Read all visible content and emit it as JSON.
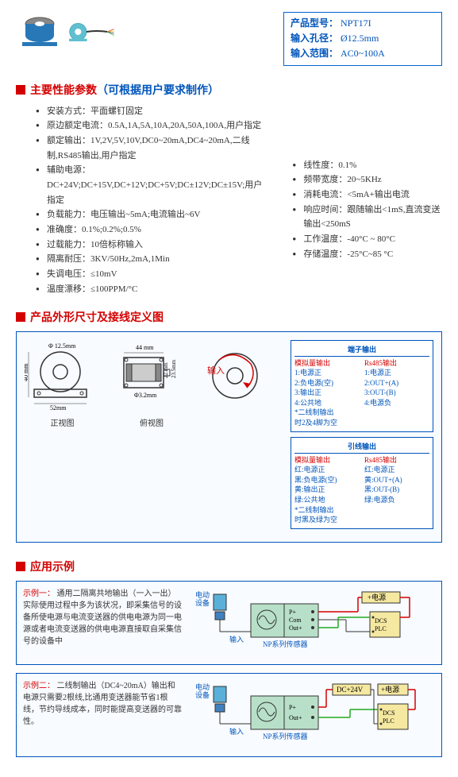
{
  "product": {
    "model_label": "产品型号：",
    "model": "NPT17I",
    "aperture_label": "输入孔径：",
    "aperture": "Ø12.5mm",
    "range_label": "输入范围：",
    "range": "AC0~100A"
  },
  "section1": {
    "title": "主要性能参数",
    "subtitle": "（可根据用户要求制作）",
    "left_specs": [
      "安装方式：平面螺钉固定",
      "原边额定电流：0.5A,1A,5A,10A,20A,50A,100A,用户指定",
      "额定输出：1V,2V,5V,10V,DC0~20mA,DC4~20mA,二线制,RS485输出,用户指定",
      "辅助电源：DC+24V;DC+15V,DC+12V;DC+5V;DC±12V;DC±15V;用户指定",
      "负载能力：电压输出~5mA;电流输出~6V",
      "准确度：0.1%;0.2%;0.5%",
      "过载能力：10倍标称输入",
      "隔离耐压：3KV/50Hz,2mA,1Min",
      "失调电压：≤10mV",
      "温度漂移：≤100PPM/°C"
    ],
    "right_specs": [
      "线性度：0.1%",
      "频带宽度：20~5KHz",
      "消耗电流：<5mA+输出电流",
      "响应时间：跟随输出<1mS,直流变送输出<250mS",
      "工作温度：-40°C ~ 80°C",
      "存储温度：-25°C~85 °C"
    ]
  },
  "section2": {
    "title": "产品外形尺寸及接线定义图",
    "front_view": "正视图",
    "top_view": "俯视图",
    "input_label": "输入",
    "dims": {
      "hole": "Φ 12.5mm",
      "width": "52mm",
      "height": "40 mm",
      "len": "44 mm",
      "h2": "22.mm",
      "h3": "23.5mm",
      "screw": "Φ3.2mm"
    },
    "terminal": {
      "title": "端子输出",
      "col1_head": "模拟量输出",
      "col2_head": "Rs485输出",
      "col1": [
        "1:电源正",
        "2:负电源(空)",
        "3:输出正",
        "4:公共地",
        "*二线制输出",
        "时2及4脚为空"
      ],
      "col2": [
        "1:电源正",
        "2:OUT+(A)",
        "3:OUT-(B)",
        "4:电源负"
      ]
    },
    "lead": {
      "title": "引线输出",
      "col1_head": "模拟量输出",
      "col2_head": "Rs485输出",
      "col1": [
        "红:电源正",
        "黑:负电源(空)",
        "黄:输出正",
        "绿:公共地",
        "*二线制输出",
        "时黑及绿为空"
      ],
      "col2": [
        "红:电源正",
        "黄:OUT+(A)",
        "黑:OUT-(B)",
        "绿:电源负"
      ]
    }
  },
  "section3": {
    "title": "应用示例",
    "ex1_label": "示例一：",
    "ex1_text": "通用二隔离共地输出（一入一出）实际使用过程中多为该状况，即采集信号的设备所使电源与电流变送器的供电电源为同一电源或者电流变送器的供电电源直接取自采集信号的设备中",
    "ex2_label": "示例二：",
    "ex2_text": "二线制输出（DC4~20mA）输出和电源只需要2根线,比通用变送器能节省1根线，节约导线成本，同时能提高变送器的可靠性。",
    "labels": {
      "motor": "电动设备",
      "input": "输入",
      "sensor": "NP系列传感器",
      "power": "+电源",
      "dc24": "DC+24V",
      "dcs": "DCS\nPLC"
    }
  },
  "colors": {
    "red": "#d40000",
    "blue": "#0055bb",
    "box_blue": "#0066cc",
    "sensor_blue": "#2878b8",
    "sensor_cyan": "#5fc0d0",
    "green_box": "#b8e0c8",
    "yellow_box": "#f5e8a0"
  }
}
